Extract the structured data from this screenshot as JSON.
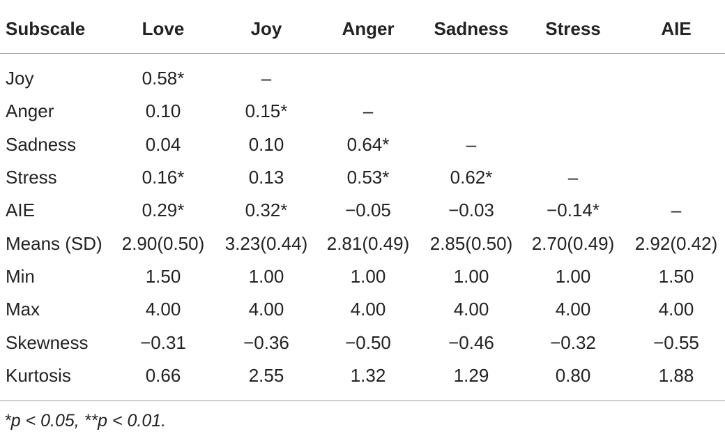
{
  "table": {
    "header": [
      "Subscale",
      "Love",
      "Joy",
      "Anger",
      "Sadness",
      "Stress",
      "AIE"
    ],
    "rows": [
      [
        "Joy",
        "0.58*",
        "–"
      ],
      [
        "Anger",
        "0.10",
        "0.15*",
        "–"
      ],
      [
        "Sadness",
        "0.04",
        "0.10",
        "0.64*",
        "–"
      ],
      [
        "Stress",
        "0.16*",
        "0.13",
        "0.53*",
        "0.62*",
        "–"
      ],
      [
        "AIE",
        "0.29*",
        "0.32*",
        "−0.05",
        "−0.03",
        "−0.14*",
        "–"
      ],
      [
        "Means (SD)",
        "2.90(0.50)",
        "3.23(0.44)",
        "2.81(0.49)",
        "2.85(0.50)",
        "2.70(0.49)",
        "2.92(0.42)"
      ],
      [
        "Min",
        "1.50",
        "1.00",
        "1.00",
        "1.00",
        "1.00",
        "1.50"
      ],
      [
        "Max",
        "4.00",
        "4.00",
        "4.00",
        "4.00",
        "4.00",
        "4.00"
      ],
      [
        "Skewness",
        "−0.31",
        "−0.36",
        "−0.50",
        "−0.46",
        "−0.32",
        "−0.55"
      ],
      [
        "Kurtosis",
        "0.66",
        "2.55",
        "1.32",
        "1.29",
        "0.80",
        "1.88"
      ]
    ],
    "footnote": "*p < 0.05, **p < 0.01."
  }
}
